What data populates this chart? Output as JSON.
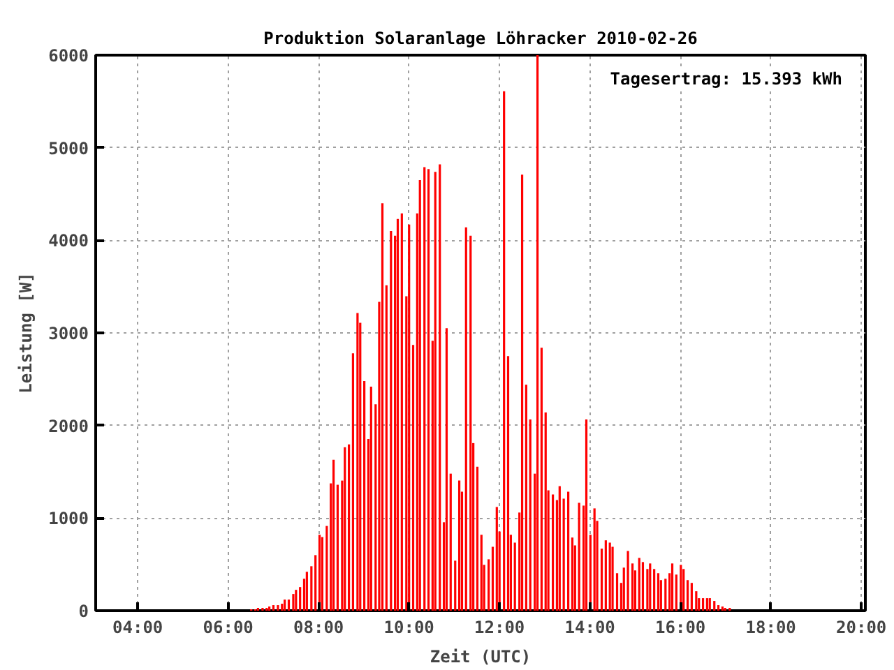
{
  "chart_data": {
    "type": "bar",
    "title": "Produktion Solaranlage Löhracker 2010-02-26",
    "xlabel": "Zeit (UTC)",
    "ylabel": "Leistung [W]",
    "annotations": [
      "Tagesertrag: 15.393 kWh"
    ],
    "color": "#ff0000",
    "grid": true,
    "x": [
      6.51,
      6.6,
      6.66,
      6.76,
      6.85,
      6.91,
      7.0,
      7.1,
      7.19,
      7.25,
      7.34,
      7.44,
      7.5,
      7.59,
      7.68,
      7.74,
      7.84,
      7.93,
      8.02,
      8.08,
      8.18,
      8.27,
      8.33,
      8.42,
      8.52,
      8.58,
      8.67,
      8.76,
      8.86,
      8.92,
      9.01,
      9.1,
      9.16,
      9.26,
      9.34,
      9.41,
      9.5,
      9.6,
      9.69,
      9.75,
      9.84,
      9.94,
      10.0,
      10.09,
      10.18,
      10.24,
      10.34,
      10.43,
      10.52,
      10.58,
      10.68,
      10.77,
      10.83,
      10.92,
      11.02,
      11.11,
      11.17,
      11.26,
      11.36,
      11.42,
      11.51,
      11.6,
      11.66,
      11.76,
      11.85,
      11.94,
      12.0,
      12.1,
      12.19,
      12.25,
      12.34,
      12.44,
      12.5,
      12.59,
      12.68,
      12.78,
      12.84,
      12.93,
      13.02,
      13.08,
      13.18,
      13.27,
      13.33,
      13.42,
      13.52,
      13.61,
      13.67,
      13.76,
      13.86,
      13.92,
      14.01,
      14.1,
      14.16,
      14.26,
      14.35,
      14.44,
      14.5,
      14.6,
      14.69,
      14.75,
      14.84,
      14.94,
      15.0,
      15.09,
      15.17,
      15.27,
      15.33,
      15.42,
      15.51,
      15.57,
      15.67,
      15.76,
      15.82,
      15.91,
      16.01,
      16.07,
      16.16,
      16.25,
      16.35,
      16.41,
      16.5,
      16.59,
      16.65,
      16.75,
      16.84,
      16.93,
      16.99,
      17.09
    ],
    "values": [
      15,
      15,
      30,
      30,
      30,
      45,
      60,
      60,
      75,
      120,
      120,
      180,
      225,
      255,
      345,
      420,
      480,
      600,
      820,
      795,
      915,
      1375,
      1630,
      1360,
      1405,
      1765,
      1795,
      2780,
      3215,
      3110,
      2480,
      1855,
      2420,
      2230,
      3335,
      4400,
      3515,
      4100,
      4050,
      4230,
      4290,
      3395,
      4170,
      2870,
      4290,
      4650,
      4790,
      4770,
      2915,
      4740,
      4820,
      955,
      3050,
      1480,
      540,
      1405,
      1285,
      4140,
      4050,
      1810,
      1555,
      820,
      495,
      555,
      690,
      1120,
      855,
      5610,
      2750,
      820,
      735,
      1060,
      4710,
      2440,
      2065,
      1480,
      6000,
      2840,
      2140,
      1300,
      1255,
      1195,
      1345,
      1210,
      1285,
      790,
      705,
      1165,
      1135,
      2065,
      820,
      1105,
      970,
      670,
      760,
      735,
      690,
      405,
      300,
      465,
      645,
      510,
      435,
      570,
      525,
      450,
      510,
      450,
      405,
      330,
      345,
      405,
      510,
      390,
      495,
      450,
      330,
      300,
      210,
      135,
      135,
      135,
      135,
      105,
      60,
      45,
      30,
      30
    ],
    "xlim": [
      3.07,
      20.09
    ],
    "ylim": [
      0,
      6000
    ],
    "xticks": [
      {
        "value": 4,
        "label": "04:00"
      },
      {
        "value": 6,
        "label": "06:00"
      },
      {
        "value": 8,
        "label": "08:00"
      },
      {
        "value": 10,
        "label": "10:00"
      },
      {
        "value": 12,
        "label": "12:00"
      },
      {
        "value": 14,
        "label": "14:00"
      },
      {
        "value": 16,
        "label": "16:00"
      },
      {
        "value": 18,
        "label": "18:00"
      },
      {
        "value": 20,
        "label": "20:00"
      }
    ],
    "yticks": [
      0,
      1000,
      2000,
      3000,
      4000,
      5000,
      6000
    ]
  }
}
